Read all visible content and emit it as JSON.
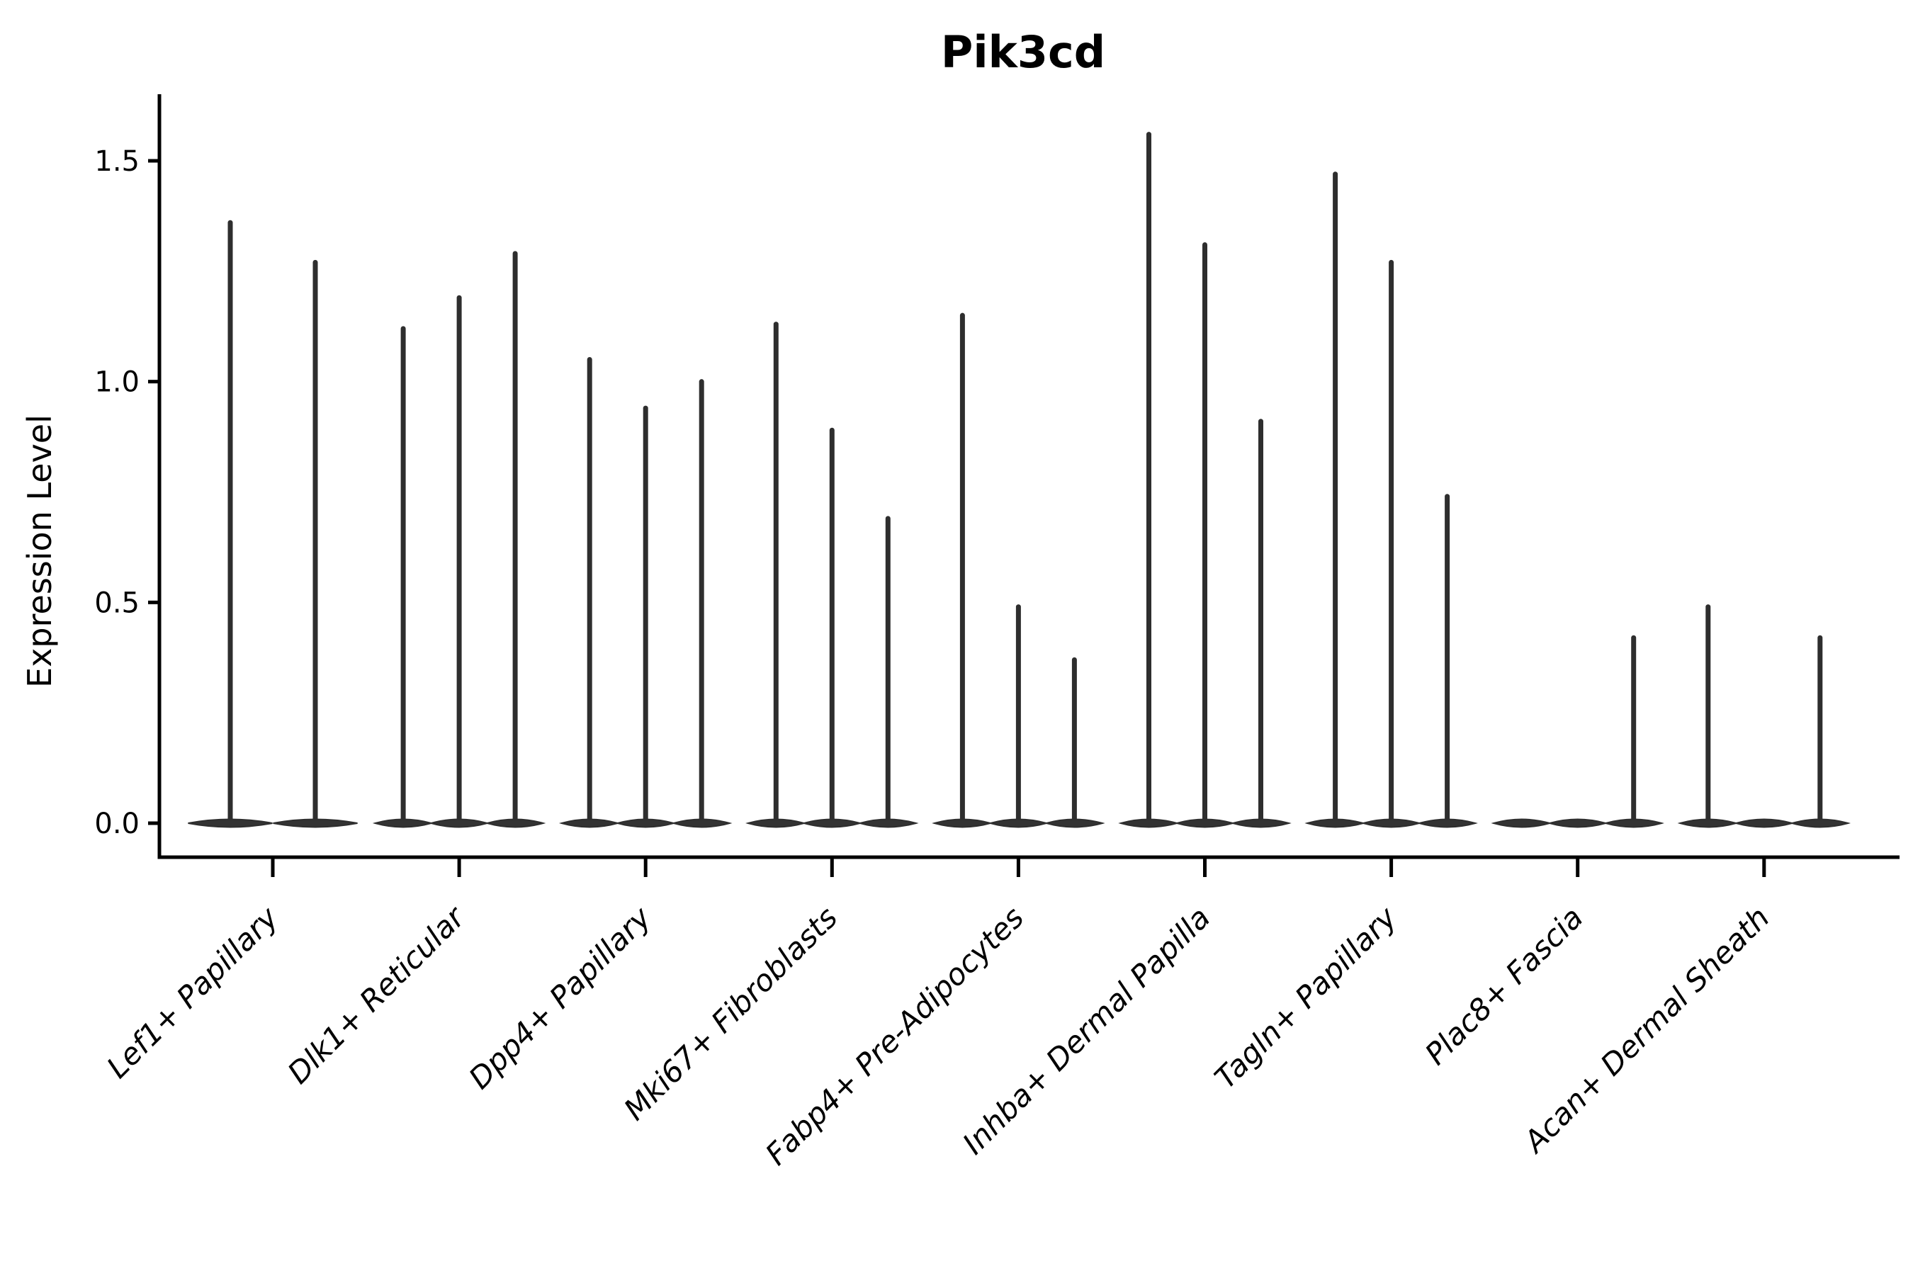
{
  "chart_data": {
    "type": "violin",
    "title": "Pik3cd",
    "ylabel": "Expression Level",
    "xlabel": "",
    "yticks": [
      0.0,
      0.5,
      1.0,
      1.5
    ],
    "ytick_labels": [
      "0.0",
      "0.5",
      "1.0",
      "1.5"
    ],
    "ylim": [
      -0.08,
      1.66
    ],
    "grid": false,
    "legend": "none",
    "groups": [
      {
        "label": "Lef1+ Papillary",
        "violin_maxima": [
          1.36,
          1.27
        ]
      },
      {
        "label": "Dlk1+ Reticular",
        "violin_maxima": [
          1.12,
          1.19,
          1.29
        ]
      },
      {
        "label": "Dpp4+ Papillary",
        "violin_maxima": [
          1.05,
          0.94,
          1.0
        ]
      },
      {
        "label": "Mki67+ Fibroblasts",
        "violin_maxima": [
          1.13,
          0.89,
          0.69
        ]
      },
      {
        "label": "Fabp4+ Pre-Adipocytes",
        "violin_maxima": [
          1.15,
          0.49,
          0.37
        ]
      },
      {
        "label": "Inhba+ Dermal Papilla",
        "violin_maxima": [
          1.56,
          1.31,
          0.91
        ]
      },
      {
        "label": "Tagln+ Papillary",
        "violin_maxima": [
          1.47,
          1.27,
          0.74
        ]
      },
      {
        "label": "Plac8+ Fascia",
        "violin_maxima": [
          0,
          0,
          0.42
        ]
      },
      {
        "label": "Acan+ Dermal Sheath",
        "violin_maxima": [
          0.49,
          0,
          0.42
        ]
      }
    ],
    "colors": {
      "violin_stroke": "#2e2e2e",
      "violin_fill": "#333333",
      "axis": "#000000",
      "background": "#ffffff"
    },
    "notes": "Each labeled cell-type group contains 2-3 thin violins; violins are collapsed at 0 with a thin spike reaching the listed maximum expression value. Violins with maximum 0 show only the baseline body."
  }
}
